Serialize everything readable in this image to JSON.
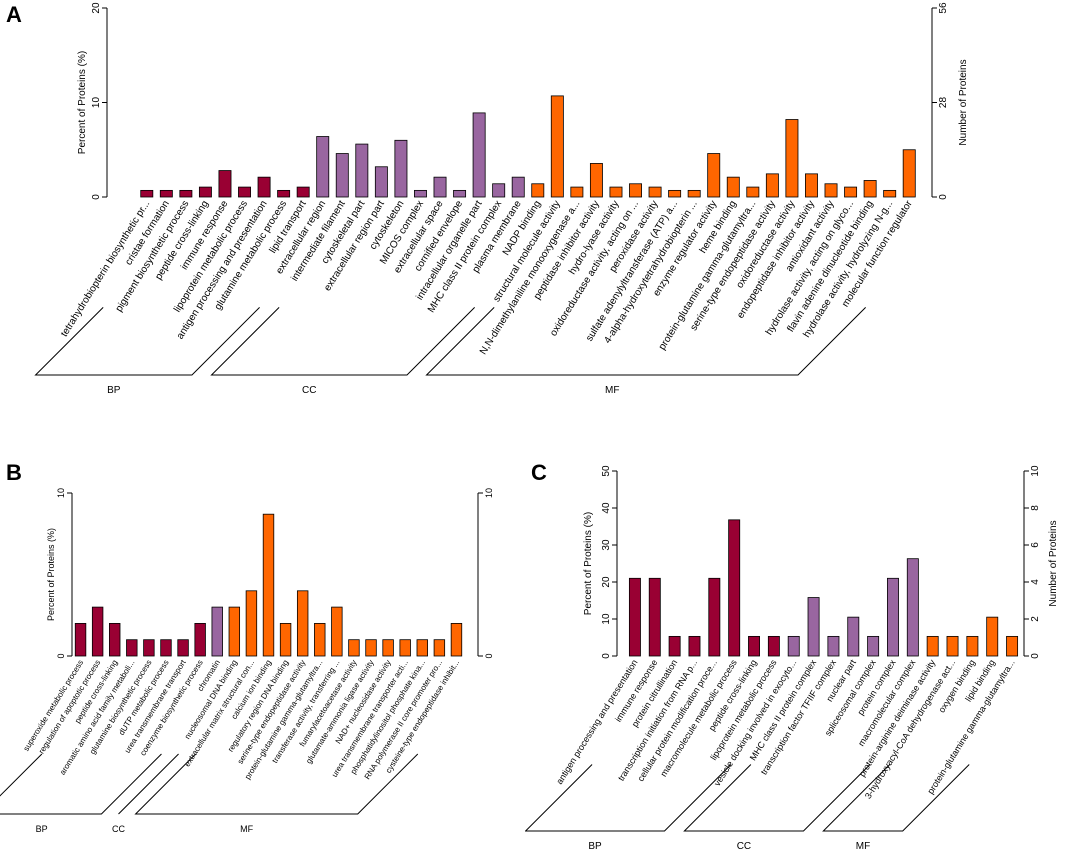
{
  "panel_letters": {
    "a": "A",
    "b": "B",
    "c": "C"
  },
  "colors": {
    "BP": "#990033",
    "CC": "#9966a0",
    "MF": "#ff6600"
  },
  "chart_data": [
    {
      "panel": "A",
      "type": "bar",
      "ylabel": "Percent of Proteins (%)",
      "ylabel_right": "Number of Proteins",
      "ylim": [
        0,
        20
      ],
      "yticks": [
        "0",
        "10",
        "20"
      ],
      "yticks_right": [
        "0",
        "28",
        "56"
      ],
      "categories": [
        "tetrahydrobiopterin biosynthetic pr...",
        "cristae formation",
        "pigment biosynthetic process",
        "peptide cross-linking",
        "immune response",
        "lipoprotein metabolic process",
        "antigen processing and presentation",
        "glutamine metabolic process",
        "lipid transport",
        "extracellular region",
        "intermediate filament",
        "cytoskeletal part",
        "extracellular region part",
        "cytoskeleton",
        "MICOS complex",
        "extracellular space",
        "cornified envelope",
        "intracellular organelle part",
        "MHC class II protein complex",
        "plasma membrane",
        "NADP binding",
        "structural molecule activity",
        "N,N-dimethylaniline monooxygenase a...",
        "peptidase inhibitor activity",
        "hydro-lyase activity",
        "oxidoreductase activity, acting on ...",
        "peroxidase activity",
        "sulfate adenylyltransferase (ATP) a...",
        "4-alpha-hydroxytetrahydrobiopterin ...",
        "enzyme regulator activity",
        "heme binding",
        "protein-glutamine gamma-glutamyltra...",
        "serine-type endopeptidase activity",
        "oxidoreductase activity",
        "endopeptidase inhibitor activity",
        "antioxidant activity",
        "hydrolase activity, acting on glyco...",
        "flavin adenine dinucleotide binding",
        "hydrolase activity, hydrolyzing N-g...",
        "molecular function regulator"
      ],
      "values": [
        0.7,
        0.7,
        0.7,
        1.05,
        2.8,
        1.05,
        2.1,
        0.7,
        1.05,
        6.4,
        4.6,
        5.6,
        3.2,
        6.0,
        0.7,
        2.1,
        0.7,
        8.9,
        1.4,
        2.1,
        1.4,
        10.7,
        1.05,
        3.55,
        1.05,
        1.4,
        1.05,
        0.7,
        0.7,
        4.6,
        2.1,
        1.05,
        2.45,
        8.2,
        2.45,
        1.4,
        1.05,
        1.75,
        0.7,
        5.0
      ],
      "groups": [
        {
          "name": "BP",
          "count": 9
        },
        {
          "name": "CC",
          "count": 11
        },
        {
          "name": "MF",
          "count": 20
        }
      ]
    },
    {
      "panel": "B",
      "type": "bar",
      "ylabel": "Percent of Proteins (%)",
      "ylim": [
        0,
        10
      ],
      "yticks": [
        "0",
        "10"
      ],
      "yticks_right": [
        "0",
        "10"
      ],
      "categories": [
        "superoxide metabolic process",
        "regulation of apoptotic process",
        "peptide cross-linking",
        "aromatic amino acid family metaboli...",
        "glutamine biosynthetic process",
        "dUTP metabolic process",
        "urea transmembrane transport",
        "coenzyme biosynthetic process",
        "chromatin",
        "nucleosomal DNA binding",
        "extracellular matrix structural con...",
        "calcium ion binding",
        "regulatory region DNA binding",
        "serine-type endopeptidase activity",
        "protein-glutamine gamma-glutamyltra...",
        "transferase activity, transferring ...",
        "fumarylacetoacetase activity",
        "glutamate-ammonia ligase activity",
        "NAD+ nucleosidase activity",
        "urea transmembrane transporter acti...",
        "phosphatidylinositol phosphate kina...",
        "RNA polymerase II core promoter pro...",
        "cysteine-type endopeptidase inhibit..."
      ],
      "values": [
        2,
        3,
        2,
        1,
        1,
        1,
        1,
        2,
        3,
        3,
        4,
        8.7,
        2,
        4,
        2,
        3,
        1,
        1,
        1,
        1,
        1,
        1,
        2
      ],
      "groups": [
        {
          "name": "BP",
          "count": 8
        },
        {
          "name": "CC",
          "count": 1
        },
        {
          "name": "MF",
          "count": 14
        }
      ]
    },
    {
      "panel": "C",
      "type": "bar",
      "ylabel": "Percent of Proteins (%)",
      "ylabel_right": "Number of Proteins",
      "ylim": [
        0,
        50
      ],
      "yticks": [
        "0",
        "10",
        "20",
        "30",
        "40",
        "50"
      ],
      "yticks_right": [
        "0",
        "2",
        "4",
        "6",
        "8",
        "10"
      ],
      "categories": [
        "antigen processing and presentation",
        "immune response",
        "protein citrullination",
        "transcription initiation from RNA p...",
        "cellular protein modification proce...",
        "macromolecule metabolic process",
        "peptide cross-linking",
        "lipoprotein metabolic process",
        "vesicle docking involved in exocyto...",
        "MHC class II protein complex",
        "transcription factor TFIIF complex",
        "nuclear part",
        "spliceosomal complex",
        "protein complex",
        "macromolecular complex",
        "protein-arginine deiminase activity",
        "3-hydroxyacyl-CoA dehydrogenase act...",
        "oxygen binding",
        "lipid binding",
        "protein-glutamine gamma-glutamyltra..."
      ],
      "values": [
        21,
        21,
        5.3,
        5.3,
        21,
        36.8,
        5.3,
        5.3,
        5.3,
        15.8,
        5.3,
        10.5,
        5.3,
        21,
        26.3,
        5.3,
        5.3,
        5.3,
        10.5,
        5.3
      ],
      "groups": [
        {
          "name": "BP",
          "count": 8
        },
        {
          "name": "CC",
          "count": 7
        },
        {
          "name": "MF",
          "count": 5
        }
      ]
    }
  ]
}
